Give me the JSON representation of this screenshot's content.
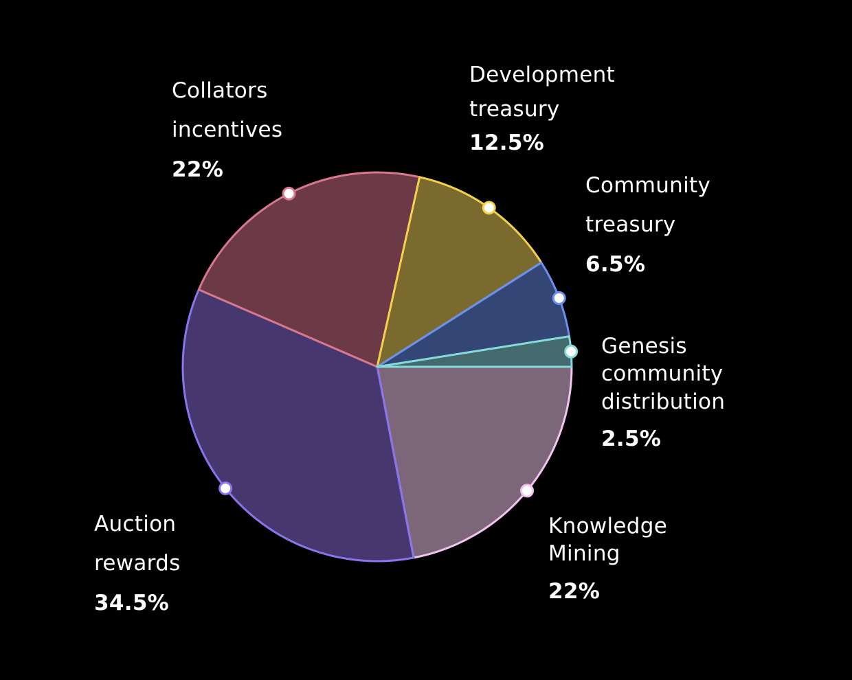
{
  "chart_data": {
    "type": "pie",
    "title": "",
    "start_angle_deg": 0,
    "direction": "clockwise",
    "slices": [
      {
        "label": "Knowledge Mining",
        "value": 22,
        "display": "22%",
        "fill": "#7c6679",
        "stroke": "#f2c4f0"
      },
      {
        "label": "Auction rewards",
        "value": 34.5,
        "display": "34.5%",
        "fill": "#46386f",
        "stroke": "#8a74ec"
      },
      {
        "label": "Collators incentives",
        "value": 22,
        "display": "22%",
        "fill": "#6b3a46",
        "stroke": "#d9788c"
      },
      {
        "label": "Development treasury",
        "value": 12.5,
        "display": "12.5%",
        "fill": "#7b6a2e",
        "stroke": "#f5d050"
      },
      {
        "label": "Community treasury",
        "value": 6.5,
        "display": "6.5%",
        "fill": "#334676",
        "stroke": "#6a90f0"
      },
      {
        "label": "Genesis community distribution",
        "value": 2.5,
        "display": "2.5%",
        "fill": "#436a6c",
        "stroke": "#86dada"
      }
    ]
  }
}
